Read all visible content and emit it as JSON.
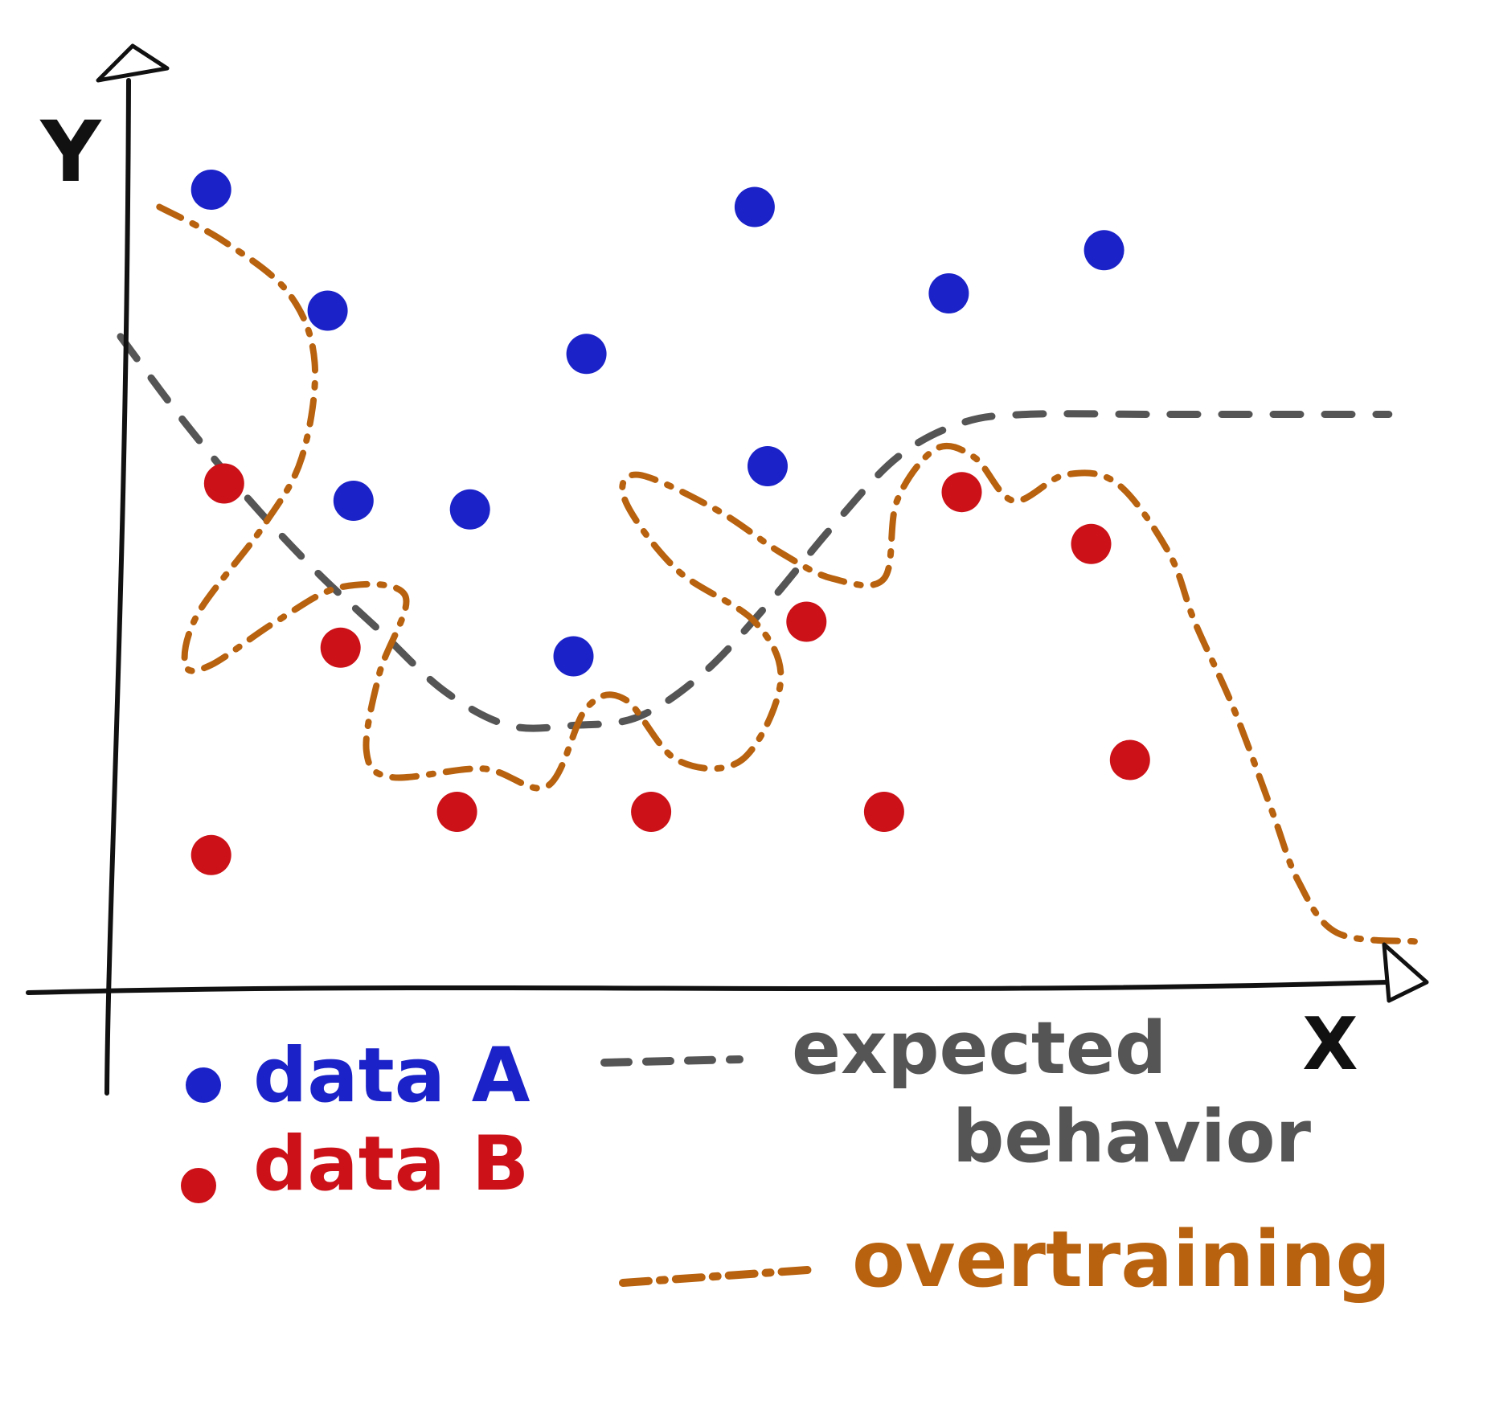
{
  "chart_data": {
    "type": "scatter",
    "title": "",
    "xlabel": "X",
    "ylabel": "Y",
    "xlim": [
      0,
      10
    ],
    "ylim": [
      0,
      10
    ],
    "colors": {
      "series_a": "#1b22c8",
      "series_b": "#cc1118",
      "expected": "#555555",
      "overtraining": "#b8620f",
      "axis": "#111111"
    },
    "series": [
      {
        "name": "data A",
        "points": [
          {
            "x": 0.7,
            "y": 9.2
          },
          {
            "x": 1.6,
            "y": 7.8
          },
          {
            "x": 1.8,
            "y": 5.6
          },
          {
            "x": 2.7,
            "y": 5.5
          },
          {
            "x": 3.6,
            "y": 7.3
          },
          {
            "x": 3.5,
            "y": 3.8
          },
          {
            "x": 4.9,
            "y": 9.0
          },
          {
            "x": 5.0,
            "y": 6.0
          },
          {
            "x": 6.4,
            "y": 8.0
          },
          {
            "x": 7.6,
            "y": 8.5
          }
        ]
      },
      {
        "name": "data B",
        "points": [
          {
            "x": 0.8,
            "y": 5.8
          },
          {
            "x": 1.7,
            "y": 3.9
          },
          {
            "x": 2.6,
            "y": 2.0
          },
          {
            "x": 4.1,
            "y": 2.0
          },
          {
            "x": 5.3,
            "y": 4.2
          },
          {
            "x": 5.9,
            "y": 2.0
          },
          {
            "x": 6.5,
            "y": 5.7
          },
          {
            "x": 7.5,
            "y": 5.1
          },
          {
            "x": 7.8,
            "y": 2.6
          },
          {
            "x": 0.7,
            "y": 1.5
          }
        ]
      }
    ],
    "lines": [
      {
        "name": "expected behavior",
        "style": "dashed",
        "x": [
          0.0,
          0.5,
          1.0,
          1.5,
          2.0,
          2.5,
          3.0,
          3.5,
          4.0,
          4.5,
          5.0,
          5.5,
          6.0,
          6.5,
          7.0,
          8.0,
          9.0,
          9.8
        ],
        "y": [
          7.5,
          6.5,
          5.6,
          4.8,
          4.1,
          3.4,
          3.0,
          3.0,
          3.1,
          3.6,
          4.4,
          5.3,
          6.1,
          6.5,
          6.6,
          6.6,
          6.6,
          6.6
        ]
      },
      {
        "name": "overtraining",
        "style": "dash-dot",
        "x": [
          0.3,
          0.8,
          1.3,
          1.5,
          1.4,
          1.1,
          0.6,
          0.5,
          0.7,
          1.2,
          1.7,
          2.2,
          2.0,
          1.9,
          2.1,
          2.8,
          3.3,
          3.6,
          3.9,
          4.3,
          4.8,
          5.1,
          4.9,
          4.3,
          3.9,
          4.0,
          4.6,
          5.1,
          5.5,
          5.9,
          6.0,
          6.3,
          6.6,
          6.9,
          7.3,
          7.7,
          8.1,
          8.3,
          8.6,
          8.9,
          9.1,
          9.4,
          10.0
        ],
        "y": [
          9.0,
          8.6,
          8.0,
          7.2,
          6.1,
          5.3,
          4.3,
          3.7,
          3.7,
          4.2,
          4.6,
          4.5,
          3.6,
          2.7,
          2.4,
          2.5,
          2.3,
          3.2,
          3.3,
          2.6,
          2.6,
          3.5,
          4.2,
          4.8,
          5.6,
          5.9,
          5.5,
          5.0,
          4.7,
          4.7,
          5.6,
          6.2,
          6.1,
          5.6,
          5.9,
          5.8,
          5.0,
          4.2,
          3.2,
          2.0,
          1.2,
          0.6,
          0.5
        ]
      }
    ],
    "legend": {
      "entries": [
        {
          "label": "data A",
          "marker": "dot",
          "color": "#1b22c8"
        },
        {
          "label": "data B",
          "marker": "dot",
          "color": "#cc1118"
        },
        {
          "label": "expected behavior",
          "marker": "dashed-line",
          "color": "#555555"
        },
        {
          "label": "overtraining",
          "marker": "dash-dot-line",
          "color": "#b8620f"
        }
      ],
      "placement": "bottom"
    },
    "grid": false
  }
}
